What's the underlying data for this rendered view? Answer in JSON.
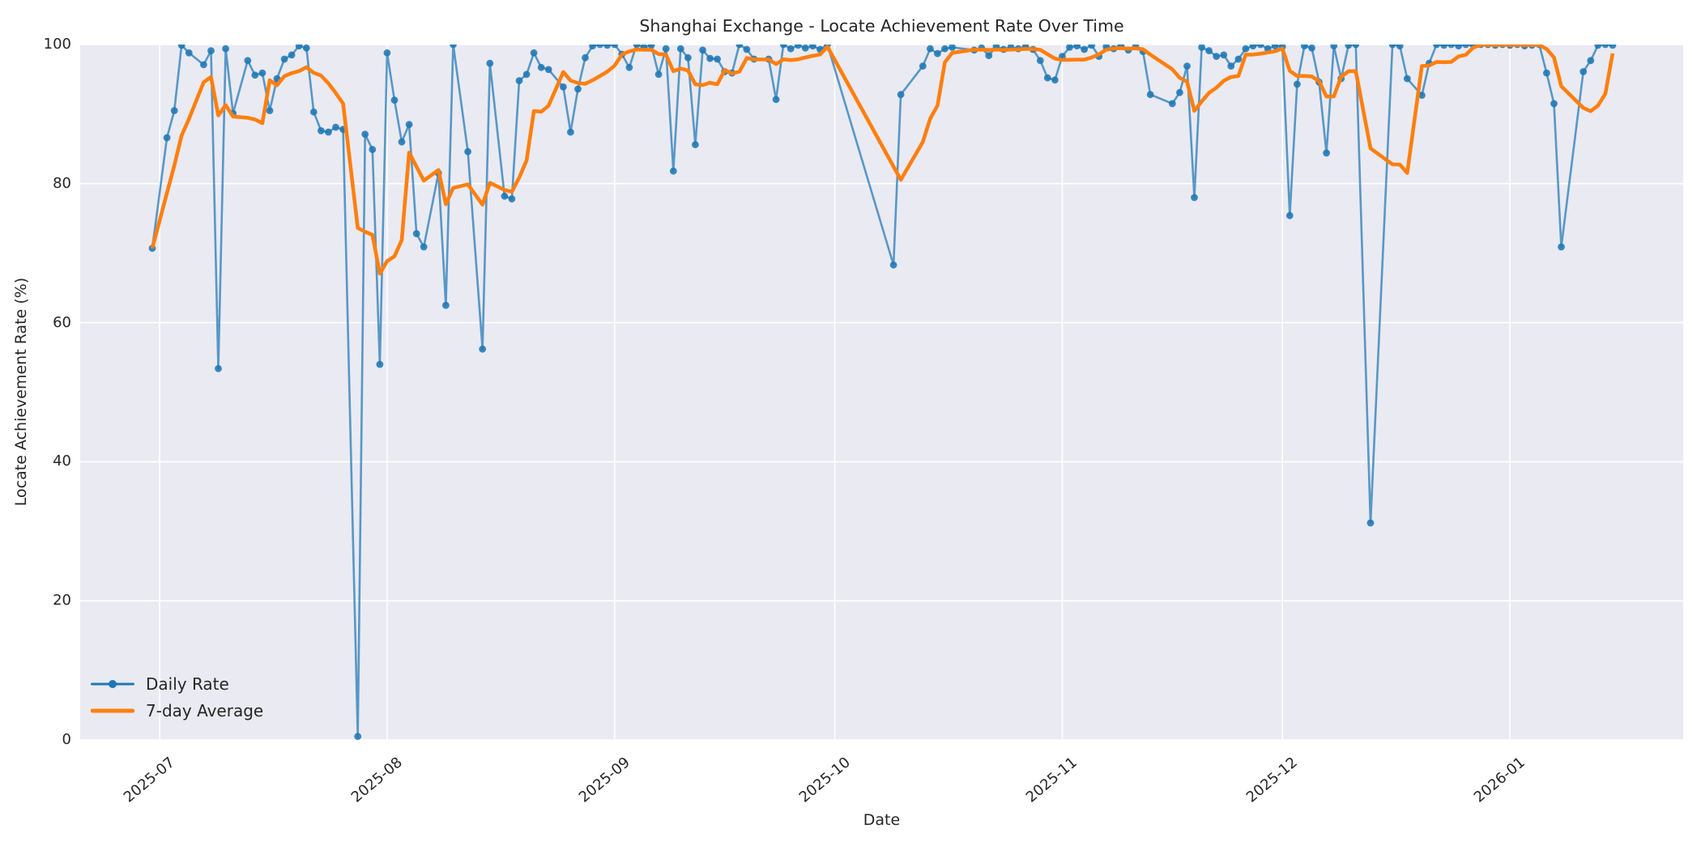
{
  "chart_data": {
    "type": "line",
    "title": "Shanghai Exchange - Locate Achievement Rate Over Time",
    "xlabel": "Date",
    "ylabel": "Locate Achievement Rate (%)",
    "ylim": [
      0,
      100
    ],
    "grid": true,
    "legend_position": "lower-left",
    "background_color": "#eaeaf2",
    "grid_color": "#ffffff",
    "text_color": "#262626",
    "x_unit": "days since 2025-06-30 (null = market closed / no data)",
    "start_date": "2025-06-30",
    "end_date": "2026-01-15",
    "y_ticks": [
      0,
      20,
      40,
      60,
      80,
      100
    ],
    "x_ticks": {
      "labels": [
        "2025-07",
        "2025-08",
        "2025-09",
        "2025-10",
        "2025-11",
        "2025-12",
        "2026-01"
      ],
      "day_index": [
        1,
        32,
        63,
        93,
        124,
        154,
        185
      ]
    },
    "series": [
      {
        "name": "Daily Rate",
        "color": "#1f77b4",
        "marker": "circle",
        "values": [
          70.7,
          null,
          86.6,
          90.5,
          99.9,
          98.8,
          null,
          97.1,
          99.1,
          53.4,
          99.4,
          90.1,
          null,
          97.7,
          95.6,
          95.9,
          90.5,
          95.1,
          97.9,
          98.5,
          99.8,
          99.5,
          90.3,
          87.6,
          87.4,
          88.1,
          87.8,
          null,
          0.5,
          87.1,
          84.9,
          54,
          98.8,
          92,
          86,
          88.5,
          72.8,
          70.9,
          null,
          81.5,
          62.5,
          100,
          null,
          84.6,
          null,
          56.2,
          97.3,
          null,
          78.2,
          77.8,
          94.8,
          95.7,
          98.8,
          96.7,
          96.4,
          null,
          93.9,
          87.4,
          93.6,
          98.1,
          99.8,
          100,
          99.9,
          100,
          98.6,
          96.7,
          100,
          99.6,
          99.9,
          95.7,
          99.4,
          81.8,
          99.4,
          98.1,
          85.6,
          99.2,
          98,
          97.9,
          96.1,
          95.9,
          100,
          99.3,
          97.9,
          null,
          97.9,
          92.1,
          100,
          99.4,
          99.9,
          99.5,
          99.8,
          99.3,
          100,
          null,
          null,
          null,
          null,
          null,
          null,
          null,
          null,
          68.3,
          92.8,
          null,
          null,
          96.9,
          99.4,
          98.7,
          99.4,
          99.6,
          null,
          null,
          99.2,
          99.5,
          98.4,
          99.7,
          99.3,
          99.6,
          99.4,
          99.7,
          99.3,
          97.7,
          95.2,
          94.9,
          98.3,
          99.6,
          99.8,
          99.3,
          99.9,
          98.3,
          99.7,
          99.4,
          100,
          99.2,
          99.7,
          99,
          92.8,
          null,
          null,
          91.5,
          93.1,
          96.9,
          78,
          99.6,
          99.1,
          98.3,
          98.5,
          96.9,
          97.9,
          99.4,
          99.8,
          100,
          99.4,
          99.8,
          99.7,
          75.4,
          94.3,
          99.8,
          99.5,
          94.6,
          84.4,
          99.8,
          95.1,
          99.9,
          100,
          null,
          31.2,
          null,
          null,
          100,
          99.8,
          95.1,
          null,
          92.7,
          97.3,
          100,
          99.9,
          100,
          99.8,
          100,
          99.9,
          100,
          100,
          99.9,
          100,
          99.9,
          100,
          99.8,
          99.9,
          100,
          95.9,
          91.5,
          70.9,
          null,
          null,
          96.1,
          97.7,
          99.9,
          100,
          99.9
        ]
      },
      {
        "name": "7-day Average",
        "color": "#ff7f0e",
        "marker": "none",
        "derived": "rolling mean of Daily Rate over trailing 7-calendar-day window"
      }
    ]
  }
}
